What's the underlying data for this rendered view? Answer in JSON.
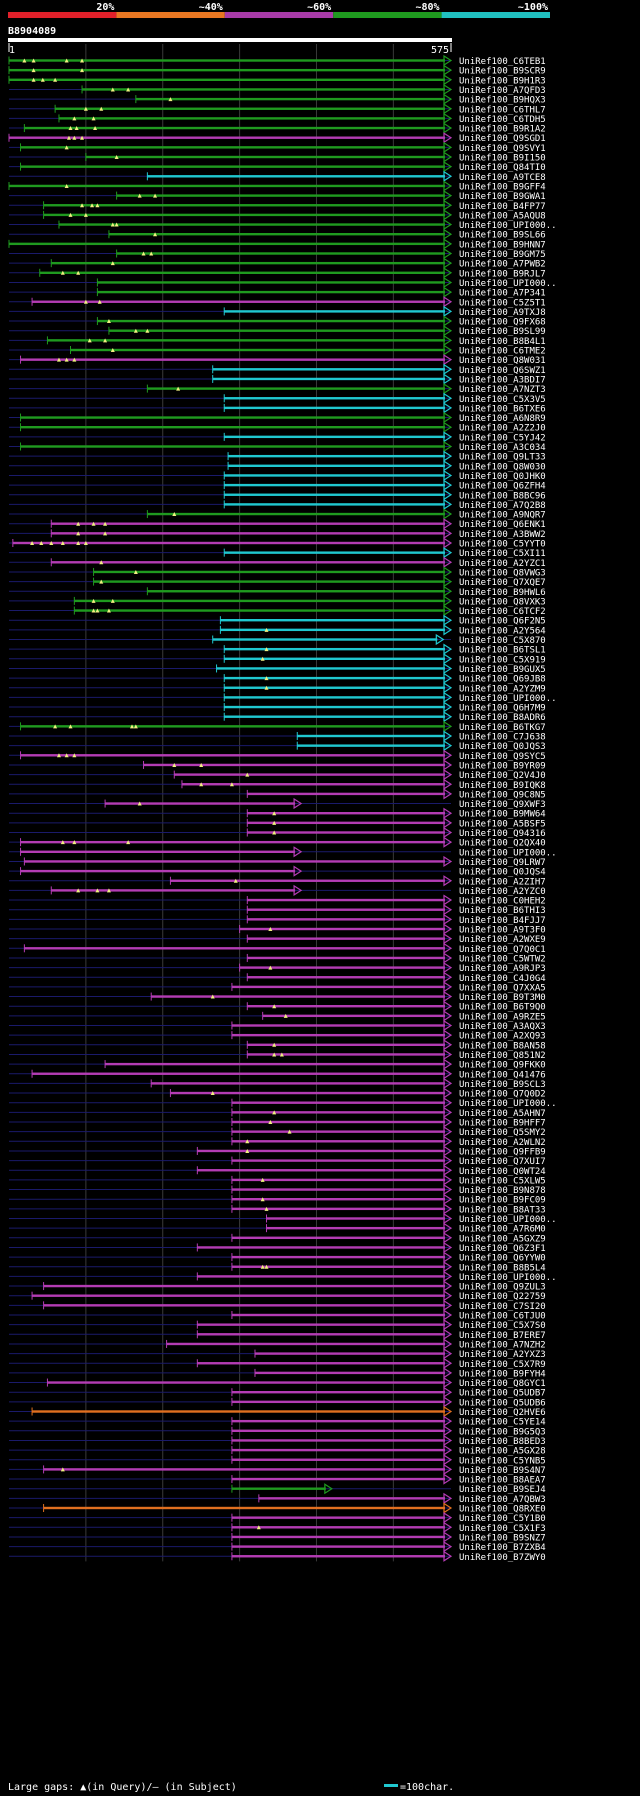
{
  "legend": {
    "labels": [
      "20%",
      "~40%",
      "~60%",
      "~80%",
      "~100%"
    ],
    "colors": [
      "#e0202a",
      "#e87722",
      "#a83ba8",
      "#1f9a1f",
      "#20c0c0"
    ]
  },
  "query": {
    "id": "B8904089",
    "start": "1",
    "end": "575",
    "length": 575
  },
  "colors": {
    "green": "#1f9a1f",
    "cyan": "#20c8d0",
    "magenta": "#b43cb4",
    "orange": "#e07020",
    "gap": "#1a1a6a"
  },
  "footer": {
    "gaps_text": "Large gaps: ▲(in Query)/– (in Subject)",
    "scale_text": "=100char."
  },
  "hits": [
    {
      "id": "UniRef100_C6TEB1",
      "c": "g",
      "s": 0,
      "e": 575,
      "q": [
        20,
        32,
        75,
        95
      ]
    },
    {
      "id": "UniRef100_B9SCR9",
      "c": "g",
      "s": 0,
      "e": 575,
      "q": [
        32,
        95
      ]
    },
    {
      "id": "UniRef100_B9H1R3",
      "c": "g",
      "s": 0,
      "e": 575,
      "q": [
        32,
        44,
        60
      ]
    },
    {
      "id": "UniRef100_A7QFD3",
      "c": "g",
      "s": 95,
      "e": 575,
      "q": [
        135,
        155
      ]
    },
    {
      "id": "UniRef100_B9HQX3",
      "c": "g",
      "s": 165,
      "e": 575,
      "q": [
        210
      ]
    },
    {
      "id": "UniRef100_C6THL7",
      "c": "g",
      "s": 60,
      "e": 575,
      "q": [
        100,
        120
      ]
    },
    {
      "id": "UniRef100_C6TDH5",
      "c": "g",
      "s": 65,
      "e": 575,
      "q": [
        85,
        110
      ]
    },
    {
      "id": "UniRef100_B9R1A2",
      "c": "g",
      "s": 20,
      "e": 575,
      "q": [
        80,
        88,
        112
      ]
    },
    {
      "id": "UniRef100_Q9SGD1",
      "c": "m",
      "s": 0,
      "e": 575,
      "q": [
        78,
        85,
        95
      ]
    },
    {
      "id": "UniRef100_Q9SVY1",
      "c": "g",
      "s": 15,
      "e": 575,
      "q": [
        75
      ]
    },
    {
      "id": "UniRef100_B9I150",
      "c": "g",
      "s": 100,
      "e": 575,
      "q": [
        140
      ]
    },
    {
      "id": "UniRef100_Q84TI0",
      "c": "g",
      "s": 15,
      "e": 575,
      "q": []
    },
    {
      "id": "UniRef100_A9TCE8",
      "c": "c",
      "s": 180,
      "e": 575,
      "q": []
    },
    {
      "id": "UniRef100_B9GFF4",
      "c": "g",
      "s": 0,
      "e": 575,
      "q": [
        75
      ]
    },
    {
      "id": "UniRef100_B9GWA1",
      "c": "g",
      "s": 140,
      "e": 575,
      "q": [
        170,
        190
      ]
    },
    {
      "id": "UniRef100_B4FP77",
      "c": "g",
      "s": 45,
      "e": 575,
      "q": [
        95,
        108,
        115
      ]
    },
    {
      "id": "UniRef100_A5AQU8",
      "c": "g",
      "s": 45,
      "e": 575,
      "q": [
        80,
        100
      ]
    },
    {
      "id": "UniRef100_UPI000..",
      "c": "g",
      "s": 65,
      "e": 575,
      "q": [
        135,
        140
      ]
    },
    {
      "id": "UniRef100_B9SL66",
      "c": "g",
      "s": 130,
      "e": 575,
      "q": [
        190
      ]
    },
    {
      "id": "UniRef100_B9HNN7",
      "c": "g",
      "s": 0,
      "e": 575,
      "q": []
    },
    {
      "id": "UniRef100_B9GM75",
      "c": "g",
      "s": 140,
      "e": 575,
      "q": [
        175,
        185
      ]
    },
    {
      "id": "UniRef100_A7PWB2",
      "c": "g",
      "s": 55,
      "e": 575,
      "q": [
        135
      ]
    },
    {
      "id": "UniRef100_B9RJL7",
      "c": "g",
      "s": 40,
      "e": 575,
      "q": [
        70,
        90
      ]
    },
    {
      "id": "UniRef100_UPI000..",
      "c": "g",
      "s": 115,
      "e": 575,
      "q": []
    },
    {
      "id": "UniRef100_A7P341",
      "c": "g",
      "s": 115,
      "e": 575,
      "q": []
    },
    {
      "id": "UniRef100_C5Z5T1",
      "c": "m",
      "s": 30,
      "e": 575,
      "q": [
        100,
        118
      ]
    },
    {
      "id": "UniRef100_A9TXJ8",
      "c": "c",
      "s": 280,
      "e": 575,
      "q": []
    },
    {
      "id": "UniRef100_Q9FX68",
      "c": "g",
      "s": 115,
      "e": 575,
      "q": [
        130
      ]
    },
    {
      "id": "UniRef100_B9SL99",
      "c": "g",
      "s": 130,
      "e": 575,
      "q": [
        165,
        180
      ]
    },
    {
      "id": "UniRef100_B8B4L1",
      "c": "g",
      "s": 50,
      "e": 575,
      "q": [
        105,
        125
      ]
    },
    {
      "id": "UniRef100_C6TME2",
      "c": "g",
      "s": 80,
      "e": 575,
      "q": [
        135
      ]
    },
    {
      "id": "UniRef100_Q8W031",
      "c": "m",
      "s": 15,
      "e": 575,
      "q": [
        65,
        75,
        85
      ]
    },
    {
      "id": "UniRef100_Q6SWZ1",
      "c": "c",
      "s": 265,
      "e": 575,
      "q": []
    },
    {
      "id": "UniRef100_A3BDI7",
      "c": "c",
      "s": 265,
      "e": 575,
      "q": []
    },
    {
      "id": "UniRef100_A7NZT3",
      "c": "g",
      "s": 180,
      "e": 575,
      "q": [
        220
      ]
    },
    {
      "id": "UniRef100_C5X3V5",
      "c": "c",
      "s": 280,
      "e": 575,
      "q": []
    },
    {
      "id": "UniRef100_B6TXE6",
      "c": "c",
      "s": 280,
      "e": 575,
      "q": []
    },
    {
      "id": "UniRef100_A6N8R9",
      "c": "g",
      "s": 15,
      "e": 575,
      "q": []
    },
    {
      "id": "UniRef100_A2Z2J0",
      "c": "g",
      "s": 15,
      "e": 575,
      "q": []
    },
    {
      "id": "UniRef100_C5YJ42",
      "c": "c",
      "s": 280,
      "e": 575,
      "q": []
    },
    {
      "id": "UniRef100_A3C034",
      "c": "g",
      "s": 15,
      "e": 575,
      "q": []
    },
    {
      "id": "UniRef100_Q9LT33",
      "c": "c",
      "s": 285,
      "e": 575,
      "q": []
    },
    {
      "id": "UniRef100_Q8W030",
      "c": "c",
      "s": 285,
      "e": 575,
      "q": []
    },
    {
      "id": "UniRef100_Q0JHK0",
      "c": "c",
      "s": 280,
      "e": 575,
      "q": []
    },
    {
      "id": "UniRef100_Q6ZFH4",
      "c": "c",
      "s": 280,
      "e": 575,
      "q": []
    },
    {
      "id": "UniRef100_B8BC96",
      "c": "c",
      "s": 280,
      "e": 575,
      "q": []
    },
    {
      "id": "UniRef100_A7Q2B8",
      "c": "c",
      "s": 280,
      "e": 575,
      "q": []
    },
    {
      "id": "UniRef100_A9NQR7",
      "c": "g",
      "s": 180,
      "e": 575,
      "q": [
        215
      ]
    },
    {
      "id": "UniRef100_Q6ENK1",
      "c": "m",
      "s": 55,
      "e": 575,
      "q": [
        90,
        110,
        125
      ]
    },
    {
      "id": "UniRef100_A3BWW2",
      "c": "m",
      "s": 55,
      "e": 575,
      "q": [
        90,
        125
      ]
    },
    {
      "id": "UniRef100_C5YYT0",
      "c": "m",
      "s": 5,
      "e": 575,
      "q": [
        30,
        42,
        55,
        70,
        90,
        100
      ]
    },
    {
      "id": "UniRef100_C5XI11",
      "c": "c",
      "s": 280,
      "e": 575,
      "q": []
    },
    {
      "id": "UniRef100_A2YZC1",
      "c": "m",
      "s": 55,
      "e": 575,
      "q": [
        120
      ]
    },
    {
      "id": "UniRef100_Q8VWG3",
      "c": "g",
      "s": 110,
      "e": 575,
      "q": [
        165
      ]
    },
    {
      "id": "UniRef100_Q7XQE7",
      "c": "g",
      "s": 110,
      "e": 575,
      "q": [
        120
      ]
    },
    {
      "id": "UniRef100_B9HWL6",
      "c": "g",
      "s": 180,
      "e": 575,
      "q": []
    },
    {
      "id": "UniRef100_Q8VXK3",
      "c": "g",
      "s": 85,
      "e": 575,
      "q": [
        110,
        135
      ]
    },
    {
      "id": "UniRef100_C6TCF2",
      "c": "g",
      "s": 85,
      "e": 575,
      "q": [
        110,
        115,
        130
      ]
    },
    {
      "id": "UniRef100_Q6F2N5",
      "c": "c",
      "s": 275,
      "e": 575,
      "q": []
    },
    {
      "id": "UniRef100_A2Y564",
      "c": "c",
      "s": 275,
      "e": 575,
      "q": [
        335
      ]
    },
    {
      "id": "UniRef100_C5X870",
      "c": "c",
      "s": 265,
      "e": 565,
      "q": []
    },
    {
      "id": "UniRef100_B6TSL1",
      "c": "c",
      "s": 280,
      "e": 575,
      "q": [
        335
      ]
    },
    {
      "id": "UniRef100_C5X919",
      "c": "c",
      "s": 280,
      "e": 575,
      "q": [
        330
      ]
    },
    {
      "id": "UniRef100_B9GUX5",
      "c": "c",
      "s": 270,
      "e": 575,
      "q": []
    },
    {
      "id": "UniRef100_Q69JB8",
      "c": "c",
      "s": 280,
      "e": 575,
      "q": [
        335
      ]
    },
    {
      "id": "UniRef100_A2YZM9",
      "c": "c",
      "s": 280,
      "e": 575,
      "q": [
        335
      ]
    },
    {
      "id": "UniRef100_UPI000..",
      "c": "c",
      "s": 280,
      "e": 575,
      "q": []
    },
    {
      "id": "UniRef100_Q6H7M9",
      "c": "c",
      "s": 280,
      "e": 575,
      "q": []
    },
    {
      "id": "UniRef100_B8ADR6",
      "c": "c",
      "s": 280,
      "e": 575,
      "q": []
    },
    {
      "id": "UniRef100_B6TKG7",
      "c": "g",
      "s": 15,
      "e": 575,
      "q": [
        60,
        80,
        160,
        165
      ]
    },
    {
      "id": "UniRef100_C7J638",
      "c": "c",
      "s": 375,
      "e": 575,
      "q": []
    },
    {
      "id": "UniRef100_Q0JQS3",
      "c": "c",
      "s": 375,
      "e": 575,
      "q": []
    },
    {
      "id": "UniRef100_Q9SYC5",
      "c": "m",
      "s": 15,
      "e": 575,
      "q": [
        65,
        75,
        85
      ]
    },
    {
      "id": "UniRef100_B9YR09",
      "c": "m",
      "s": 175,
      "e": 575,
      "q": [
        215,
        250
      ]
    },
    {
      "id": "UniRef100_Q2V4J0",
      "c": "m",
      "s": 215,
      "e": 575,
      "q": [
        310
      ]
    },
    {
      "id": "UniRef100_B9IQK8",
      "c": "m",
      "s": 225,
      "e": 575,
      "q": [
        250,
        290
      ]
    },
    {
      "id": "UniRef100_Q9C8N5",
      "c": "m",
      "s": 310,
      "e": 575,
      "q": []
    },
    {
      "id": "UniRef100_Q9XWF3",
      "c": "m",
      "s": 125,
      "e": 380,
      "q": [
        170
      ]
    },
    {
      "id": "UniRef100_B9MW64",
      "c": "m",
      "s": 310,
      "e": 575,
      "q": [
        345
      ]
    },
    {
      "id": "UniRef100_A5BSF5",
      "c": "m",
      "s": 310,
      "e": 575,
      "q": [
        345
      ]
    },
    {
      "id": "UniRef100_Q94316",
      "c": "m",
      "s": 310,
      "e": 575,
      "q": [
        345
      ]
    },
    {
      "id": "UniRef100_Q2QX40",
      "c": "m",
      "s": 15,
      "e": 575,
      "q": [
        70,
        85,
        155
      ]
    },
    {
      "id": "UniRef100_UPI000..",
      "c": "m",
      "s": 15,
      "e": 380,
      "q": []
    },
    {
      "id": "UniRef100_Q9LRW7",
      "c": "m",
      "s": 20,
      "e": 575,
      "q": []
    },
    {
      "id": "UniRef100_Q0JQS4",
      "c": "m",
      "s": 15,
      "e": 380,
      "q": []
    },
    {
      "id": "UniRef100_A2ZIH7",
      "c": "m",
      "s": 210,
      "e": 575,
      "q": [
        295
      ]
    },
    {
      "id": "UniRef100_A2YZC0",
      "c": "m",
      "s": 55,
      "e": 380,
      "q": [
        90,
        115,
        130
      ]
    },
    {
      "id": "UniRef100_C0HEH2",
      "c": "m",
      "s": 310,
      "e": 575,
      "q": []
    },
    {
      "id": "UniRef100_B6THI3",
      "c": "m",
      "s": 310,
      "e": 575,
      "q": []
    },
    {
      "id": "UniRef100_B4FJJ7",
      "c": "m",
      "s": 310,
      "e": 575,
      "q": []
    },
    {
      "id": "UniRef100_A9T3F0",
      "c": "m",
      "s": 300,
      "e": 575,
      "q": [
        340
      ]
    },
    {
      "id": "UniRef100_A2WXE9",
      "c": "m",
      "s": 310,
      "e": 575,
      "q": []
    },
    {
      "id": "UniRef100_Q7Q0C1",
      "c": "m",
      "s": 20,
      "e": 575,
      "q": []
    },
    {
      "id": "UniRef100_C5WTW2",
      "c": "m",
      "s": 310,
      "e": 575,
      "q": []
    },
    {
      "id": "UniRef100_A9RJP3",
      "c": "m",
      "s": 300,
      "e": 575,
      "q": [
        340
      ]
    },
    {
      "id": "UniRef100_C4J0G4",
      "c": "m",
      "s": 310,
      "e": 575,
      "q": []
    },
    {
      "id": "UniRef100_Q7XXA5",
      "c": "m",
      "s": 290,
      "e": 575,
      "q": []
    },
    {
      "id": "UniRef100_B9T3M0",
      "c": "m",
      "s": 185,
      "e": 575,
      "q": [
        265
      ]
    },
    {
      "id": "UniRef100_B6T9Q0",
      "c": "m",
      "s": 310,
      "e": 575,
      "q": [
        345
      ]
    },
    {
      "id": "UniRef100_A9RZE5",
      "c": "m",
      "s": 330,
      "e": 575,
      "q": [
        360
      ]
    },
    {
      "id": "UniRef100_A3AQX3",
      "c": "m",
      "s": 290,
      "e": 575,
      "q": []
    },
    {
      "id": "UniRef100_A2XQ93",
      "c": "m",
      "s": 290,
      "e": 575,
      "q": []
    },
    {
      "id": "UniRef100_B8AN58",
      "c": "m",
      "s": 310,
      "e": 575,
      "q": [
        345
      ]
    },
    {
      "id": "UniRef100_Q851N2",
      "c": "m",
      "s": 310,
      "e": 575,
      "q": [
        345,
        355
      ]
    },
    {
      "id": "UniRef100_Q9FKK0",
      "c": "m",
      "s": 125,
      "e": 575,
      "q": []
    },
    {
      "id": "UniRef100_Q41476",
      "c": "m",
      "s": 30,
      "e": 575,
      "q": []
    },
    {
      "id": "UniRef100_B9SCL3",
      "c": "m",
      "s": 185,
      "e": 575,
      "q": []
    },
    {
      "id": "UniRef100_Q7Q0D2",
      "c": "m",
      "s": 210,
      "e": 575,
      "q": [
        265
      ]
    },
    {
      "id": "UniRef100_UPI000..",
      "c": "m",
      "s": 290,
      "e": 575,
      "q": []
    },
    {
      "id": "UniRef100_A5AHN7",
      "c": "m",
      "s": 290,
      "e": 575,
      "q": [
        345
      ]
    },
    {
      "id": "UniRef100_B9HFF7",
      "c": "m",
      "s": 290,
      "e": 575,
      "q": [
        340
      ]
    },
    {
      "id": "UniRef100_Q5SMY2",
      "c": "m",
      "s": 290,
      "e": 575,
      "q": [
        365
      ]
    },
    {
      "id": "UniRef100_A2WLN2",
      "c": "m",
      "s": 290,
      "e": 575,
      "q": [
        310
      ]
    },
    {
      "id": "UniRef100_Q9FFB9",
      "c": "m",
      "s": 245,
      "e": 575,
      "q": [
        310
      ]
    },
    {
      "id": "UniRef100_Q7XUI7",
      "c": "m",
      "s": 290,
      "e": 575,
      "q": []
    },
    {
      "id": "UniRef100_Q0WT24",
      "c": "m",
      "s": 245,
      "e": 575,
      "q": []
    },
    {
      "id": "UniRef100_C5XLW5",
      "c": "m",
      "s": 290,
      "e": 575,
      "q": [
        330
      ]
    },
    {
      "id": "UniRef100_B9N878",
      "c": "m",
      "s": 290,
      "e": 575,
      "q": []
    },
    {
      "id": "UniRef100_B9FC09",
      "c": "m",
      "s": 290,
      "e": 575,
      "q": [
        330
      ]
    },
    {
      "id": "UniRef100_B8AT33",
      "c": "m",
      "s": 290,
      "e": 575,
      "q": [
        335
      ]
    },
    {
      "id": "UniRef100_UPI000..",
      "c": "m",
      "s": 335,
      "e": 575,
      "q": []
    },
    {
      "id": "UniRef100_A7R6M0",
      "c": "m",
      "s": 335,
      "e": 575,
      "q": []
    },
    {
      "id": "UniRef100_A5GXZ9",
      "c": "m",
      "s": 290,
      "e": 575,
      "q": []
    },
    {
      "id": "UniRef100_Q6Z3F1",
      "c": "m",
      "s": 245,
      "e": 575,
      "q": []
    },
    {
      "id": "UniRef100_Q6YYW0",
      "c": "m",
      "s": 290,
      "e": 575,
      "q": []
    },
    {
      "id": "UniRef100_B8B5L4",
      "c": "m",
      "s": 290,
      "e": 575,
      "q": [
        330,
        335
      ]
    },
    {
      "id": "UniRef100_UPI000..",
      "c": "m",
      "s": 245,
      "e": 575,
      "q": []
    },
    {
      "id": "UniRef100_Q9ZUL3",
      "c": "m",
      "s": 45,
      "e": 575,
      "q": []
    },
    {
      "id": "UniRef100_Q22759",
      "c": "m",
      "s": 30,
      "e": 575,
      "q": []
    },
    {
      "id": "UniRef100_C7SI20",
      "c": "m",
      "s": 45,
      "e": 575,
      "q": []
    },
    {
      "id": "UniRef100_C6TJU0",
      "c": "m",
      "s": 290,
      "e": 575,
      "q": []
    },
    {
      "id": "UniRef100_C5X7S0",
      "c": "m",
      "s": 245,
      "e": 575,
      "q": []
    },
    {
      "id": "UniRef100_B7ERE7",
      "c": "m",
      "s": 245,
      "e": 575,
      "q": []
    },
    {
      "id": "UniRef100_A7NZH2",
      "c": "m",
      "s": 205,
      "e": 575,
      "q": []
    },
    {
      "id": "UniRef100_A2YXZ3",
      "c": "m",
      "s": 320,
      "e": 575,
      "q": []
    },
    {
      "id": "UniRef100_C5X7R9",
      "c": "m",
      "s": 245,
      "e": 575,
      "q": []
    },
    {
      "id": "UniRef100_B9FYH4",
      "c": "m",
      "s": 320,
      "e": 575,
      "q": []
    },
    {
      "id": "UniRef100_Q8GYC1",
      "c": "m",
      "s": 50,
      "e": 575,
      "q": []
    },
    {
      "id": "UniRef100_Q5UDB7",
      "c": "m",
      "s": 290,
      "e": 575,
      "q": []
    },
    {
      "id": "UniRef100_Q5UDB6",
      "c": "m",
      "s": 290,
      "e": 575,
      "q": []
    },
    {
      "id": "UniRef100_Q2HVE6",
      "c": "o",
      "s": 30,
      "e": 575,
      "q": []
    },
    {
      "id": "UniRef100_C5YE14",
      "c": "m",
      "s": 290,
      "e": 575,
      "q": []
    },
    {
      "id": "UniRef100_B9G5Q3",
      "c": "m",
      "s": 290,
      "e": 575,
      "q": []
    },
    {
      "id": "UniRef100_B8BED3",
      "c": "m",
      "s": 290,
      "e": 575,
      "q": []
    },
    {
      "id": "UniRef100_A5GX28",
      "c": "m",
      "s": 290,
      "e": 575,
      "q": []
    },
    {
      "id": "UniRef100_C5YNB5",
      "c": "m",
      "s": 290,
      "e": 575,
      "q": []
    },
    {
      "id": "UniRef100_B9S4N7",
      "c": "m",
      "s": 45,
      "e": 575,
      "q": [
        70
      ]
    },
    {
      "id": "UniRef100_B8AEA7",
      "c": "m",
      "s": 290,
      "e": 575,
      "q": []
    },
    {
      "id": "UniRef100_B9SEJ4",
      "c": "g",
      "s": 290,
      "e": 420,
      "q": []
    },
    {
      "id": "UniRef100_A7QBW3",
      "c": "m",
      "s": 325,
      "e": 575,
      "q": []
    },
    {
      "id": "UniRef100_Q8RXE0",
      "c": "o",
      "s": 45,
      "e": 575,
      "q": []
    },
    {
      "id": "UniRef100_C5Y1B0",
      "c": "m",
      "s": 290,
      "e": 575,
      "q": []
    },
    {
      "id": "UniRef100_C5X1F3",
      "c": "m",
      "s": 290,
      "e": 575,
      "q": [
        325
      ]
    },
    {
      "id": "UniRef100_B9SNZ7",
      "c": "m",
      "s": 290,
      "e": 575,
      "q": []
    },
    {
      "id": "UniRef100_B7ZXB4",
      "c": "m",
      "s": 290,
      "e": 575,
      "q": []
    },
    {
      "id": "UniRef100_B7ZWY0",
      "c": "m",
      "s": 290,
      "e": 575,
      "q": []
    }
  ]
}
